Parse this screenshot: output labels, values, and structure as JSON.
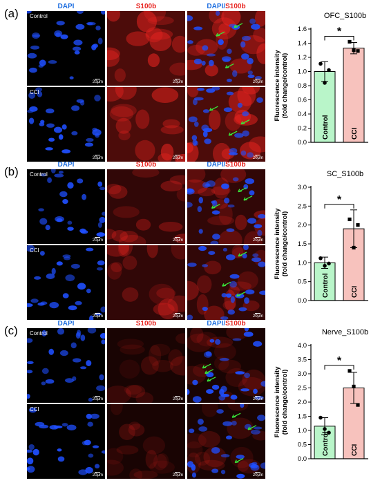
{
  "figure": {
    "column_headers": {
      "dapi": "DAPI",
      "s100b": "S100b",
      "merge_prefix": "DAPI/",
      "merge_suffix": "S100b"
    },
    "row_labels": {
      "control": "Control",
      "cci": "CCI"
    },
    "scale_bar": "20μm",
    "panels": [
      {
        "letter": "(a)",
        "red_level": "strong"
      },
      {
        "letter": "(b)",
        "red_level": "medium"
      },
      {
        "letter": "(c)",
        "red_level": "weak"
      }
    ],
    "colors": {
      "dapi": "#1f4fff",
      "s100b": "#e8231f",
      "arrow": "#39e639",
      "control_bar": "#b9f5c9",
      "cci_bar": "#f7c2bd"
    }
  },
  "chart_data": [
    {
      "type": "bar",
      "title": "OFC_S100b",
      "ylabel": "Fluorescence intensity\n(fold change/control)",
      "categories": [
        "Control",
        "CCI"
      ],
      "values": [
        1.0,
        1.33
      ],
      "error": [
        0.14,
        0.08
      ],
      "points": [
        [
          1.11,
          0.84,
          1.02
        ],
        [
          1.42,
          1.3,
          1.29
        ]
      ],
      "ylim": [
        0,
        1.6
      ],
      "yticks": [
        "0.0",
        "0.2",
        "0.4",
        "0.6",
        "0.8",
        "1.0",
        "1.2",
        "1.4",
        "1.6"
      ],
      "significance": "*"
    },
    {
      "type": "bar",
      "title": "SC_S100b",
      "ylabel": "Fluorescence intensity\n(fold change/control)",
      "categories": [
        "Control",
        "CCI"
      ],
      "values": [
        1.0,
        1.9
      ],
      "error": [
        0.15,
        0.5
      ],
      "points": [
        [
          1.12,
          0.92,
          0.98
        ],
        [
          2.15,
          1.4,
          2.0
        ]
      ],
      "ylim": [
        0,
        3.0
      ],
      "yticks": [
        "0.0",
        "0.5",
        "1.0",
        "1.5",
        "2.0",
        "2.5",
        "3.0"
      ],
      "significance": "*"
    },
    {
      "type": "bar",
      "title": "Nerve_S100b",
      "ylabel": "Fluorescence intensity\n(fold change/control)",
      "categories": [
        "Control",
        "CCI"
      ],
      "values": [
        1.15,
        2.5
      ],
      "error": [
        0.3,
        0.55
      ],
      "points": [
        [
          1.45,
          1.05,
          0.92
        ],
        [
          3.1,
          2.55,
          1.9
        ]
      ],
      "ylim": [
        0,
        4.0
      ],
      "yticks": [
        "0.0",
        "0.5",
        "1.0",
        "1.5",
        "2.0",
        "2.5",
        "3.0",
        "3.5",
        "4.0"
      ],
      "significance": "*"
    }
  ]
}
